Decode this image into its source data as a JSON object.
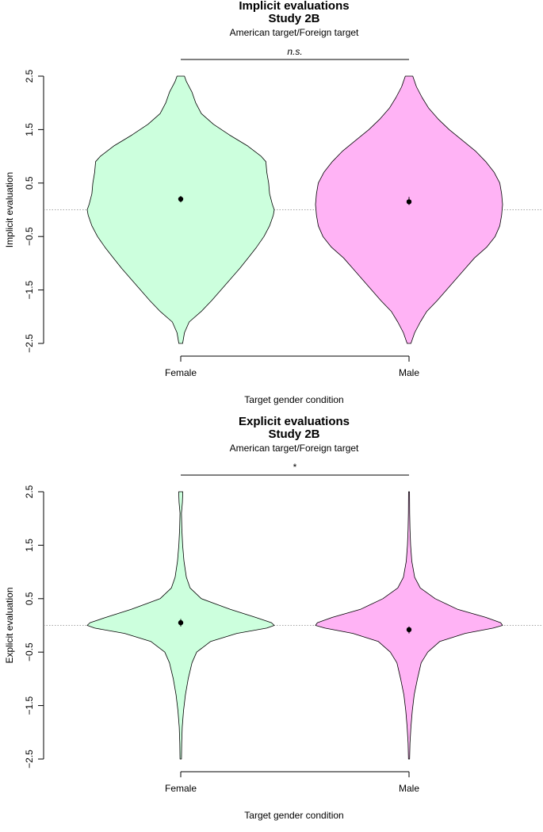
{
  "chart_data": [
    {
      "type": "violin",
      "title": "Implicit evaluations",
      "subtitle": "Study 2B",
      "note": "American target/Foreign target",
      "significance": "n.s.",
      "xlabel": "Target gender condition",
      "ylabel": "Implicit evaluation",
      "ylim": [
        -2.5,
        2.5
      ],
      "yticks": [
        "2.5",
        "1.5",
        "0.5",
        "-0.5",
        "-1.5",
        "-2.5"
      ],
      "reference_line": 0,
      "categories": [
        "Female",
        "Male"
      ],
      "colors": [
        "#ccffdd",
        "#ffb3f5"
      ],
      "series": [
        {
          "name": "Female",
          "mean": 0.2,
          "ci": [
            0.14,
            0.26
          ],
          "density": [
            [
              -2.5,
              0.02
            ],
            [
              -2.3,
              0.04
            ],
            [
              -2.1,
              0.09
            ],
            [
              -1.9,
              0.22
            ],
            [
              -1.7,
              0.33
            ],
            [
              -1.5,
              0.43
            ],
            [
              -1.3,
              0.53
            ],
            [
              -1.1,
              0.63
            ],
            [
              -0.9,
              0.72
            ],
            [
              -0.7,
              0.81
            ],
            [
              -0.5,
              0.89
            ],
            [
              -0.3,
              0.95
            ],
            [
              -0.1,
              0.99
            ],
            [
              0.0,
              1.0
            ],
            [
              0.1,
              0.98
            ],
            [
              0.3,
              0.95
            ],
            [
              0.5,
              0.94
            ],
            [
              0.7,
              0.92
            ],
            [
              0.9,
              0.91
            ],
            [
              1.0,
              0.86
            ],
            [
              1.2,
              0.71
            ],
            [
              1.4,
              0.52
            ],
            [
              1.6,
              0.35
            ],
            [
              1.8,
              0.22
            ],
            [
              2.0,
              0.16
            ],
            [
              2.2,
              0.12
            ],
            [
              2.4,
              0.06
            ],
            [
              2.5,
              0.04
            ]
          ]
        },
        {
          "name": "Male",
          "mean": 0.15,
          "ci": [
            0.09,
            0.24
          ],
          "density": [
            [
              -2.5,
              0.02
            ],
            [
              -2.3,
              0.06
            ],
            [
              -2.1,
              0.12
            ],
            [
              -1.9,
              0.19
            ],
            [
              -1.7,
              0.3
            ],
            [
              -1.5,
              0.4
            ],
            [
              -1.3,
              0.5
            ],
            [
              -1.1,
              0.6
            ],
            [
              -0.9,
              0.7
            ],
            [
              -0.7,
              0.83
            ],
            [
              -0.5,
              0.92
            ],
            [
              -0.3,
              0.97
            ],
            [
              -0.1,
              0.99
            ],
            [
              0.1,
              1.0
            ],
            [
              0.3,
              0.99
            ],
            [
              0.5,
              0.97
            ],
            [
              0.7,
              0.91
            ],
            [
              0.9,
              0.82
            ],
            [
              1.1,
              0.71
            ],
            [
              1.3,
              0.57
            ],
            [
              1.5,
              0.43
            ],
            [
              1.7,
              0.31
            ],
            [
              1.9,
              0.21
            ],
            [
              2.1,
              0.14
            ],
            [
              2.3,
              0.08
            ],
            [
              2.5,
              0.04
            ]
          ]
        }
      ]
    },
    {
      "type": "violin",
      "title": "Explicit evaluations",
      "subtitle": "Study 2B",
      "note": "American target/Foreign target",
      "significance": "*",
      "xlabel": "Target gender condition",
      "ylabel": "Explicit evaluation",
      "ylim": [
        -2.5,
        2.5
      ],
      "yticks": [
        "2.5",
        "1.5",
        "0.5",
        "-0.5",
        "-1.5",
        "-2.5"
      ],
      "reference_line": 0,
      "categories": [
        "Female",
        "Male"
      ],
      "colors": [
        "#ccffdd",
        "#ffb3f5"
      ],
      "series": [
        {
          "name": "Female",
          "mean": 0.05,
          "ci": [
            -0.02,
            0.12
          ],
          "density": [
            [
              -2.5,
              0.008
            ],
            [
              -2.2,
              0.01
            ],
            [
              -1.9,
              0.016
            ],
            [
              -1.6,
              0.03
            ],
            [
              -1.3,
              0.05
            ],
            [
              -1.0,
              0.08
            ],
            [
              -0.7,
              0.12
            ],
            [
              -0.5,
              0.17
            ],
            [
              -0.3,
              0.32
            ],
            [
              -0.15,
              0.6
            ],
            [
              -0.05,
              0.92
            ],
            [
              0.0,
              1.0
            ],
            [
              0.05,
              0.97
            ],
            [
              0.15,
              0.8
            ],
            [
              0.3,
              0.53
            ],
            [
              0.5,
              0.22
            ],
            [
              0.7,
              0.1
            ],
            [
              0.9,
              0.06
            ],
            [
              1.2,
              0.035
            ],
            [
              1.5,
              0.02
            ],
            [
              1.8,
              0.012
            ],
            [
              2.1,
              0.008
            ],
            [
              2.3,
              0.018
            ],
            [
              2.5,
              0.022
            ]
          ]
        },
        {
          "name": "Male",
          "mean": -0.08,
          "ci": [
            -0.15,
            -0.02
          ],
          "density": [
            [
              -2.5,
              0.006
            ],
            [
              -2.2,
              0.01
            ],
            [
              -1.9,
              0.02
            ],
            [
              -1.6,
              0.035
            ],
            [
              -1.3,
              0.055
            ],
            [
              -1.0,
              0.09
            ],
            [
              -0.7,
              0.13
            ],
            [
              -0.5,
              0.2
            ],
            [
              -0.3,
              0.33
            ],
            [
              -0.15,
              0.6
            ],
            [
              -0.05,
              0.9
            ],
            [
              0.0,
              1.0
            ],
            [
              0.05,
              0.98
            ],
            [
              0.15,
              0.82
            ],
            [
              0.3,
              0.52
            ],
            [
              0.5,
              0.28
            ],
            [
              0.7,
              0.12
            ],
            [
              0.9,
              0.06
            ],
            [
              1.2,
              0.03
            ],
            [
              1.5,
              0.017
            ],
            [
              1.8,
              0.01
            ],
            [
              2.1,
              0.007
            ],
            [
              2.5,
              0.005
            ]
          ]
        }
      ]
    }
  ]
}
